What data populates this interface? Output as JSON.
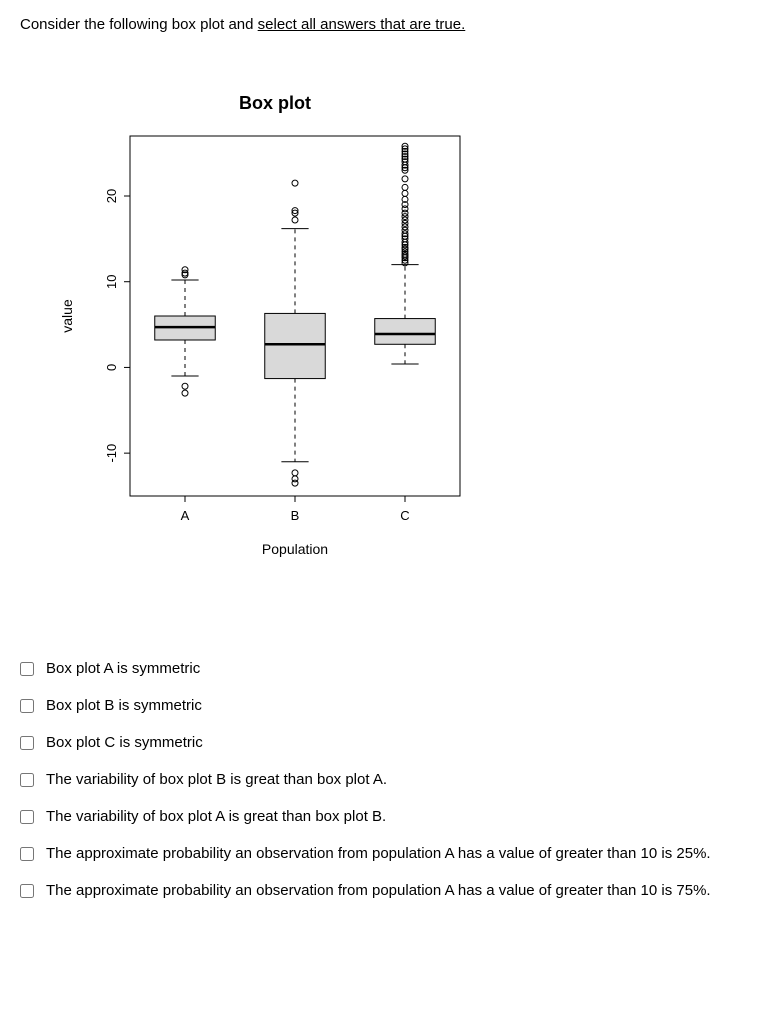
{
  "question": {
    "prefix": "Consider the following box plot and ",
    "underlined": "select all answers that are true."
  },
  "chart": {
    "type": "boxplot",
    "title": "Box plot",
    "ylabel": "value",
    "xlabel": "Population",
    "ylim": [
      -15,
      27
    ],
    "yticks": [
      -10,
      0,
      10,
      20
    ],
    "ytick_labels": [
      "-10",
      "0",
      "10",
      "20"
    ],
    "categories": [
      "A",
      "B",
      "C"
    ],
    "background_color": "#ffffff",
    "border_color": "#000000",
    "box_fill": "#d9d9d9",
    "box_stroke": "#000000",
    "median_stroke": "#000000",
    "whisker_stroke": "#000000",
    "outlier_stroke": "#000000",
    "title_fontsize": 18,
    "label_fontsize": 14,
    "tick_fontsize": 13,
    "boxes": [
      {
        "name": "A",
        "q1": 3.2,
        "median": 4.7,
        "q3": 6.0,
        "whisker_low": -1.0,
        "whisker_high": 10.2,
        "outliers_low": [
          -3.0,
          -2.2
        ],
        "outliers_high": [
          10.8,
          11.0,
          11.4
        ]
      },
      {
        "name": "B",
        "q1": -1.3,
        "median": 2.7,
        "q3": 6.3,
        "whisker_low": -11.0,
        "whisker_high": 16.2,
        "outliers_low": [
          -13.5,
          -13.0,
          -12.3
        ],
        "outliers_high": [
          17.2,
          18.0,
          18.3,
          21.5
        ]
      },
      {
        "name": "C",
        "q1": 2.7,
        "median": 3.9,
        "q3": 5.7,
        "whisker_low": 0.4,
        "whisker_high": 12.0,
        "outliers_low": [],
        "outliers_high": [
          12.2,
          12.5,
          12.8,
          13.0,
          13.2,
          13.5,
          13.8,
          14.0,
          14.3,
          14.6,
          15.0,
          15.3,
          15.6,
          16.0,
          16.4,
          16.8,
          17.2,
          17.6,
          18.0,
          18.5,
          19.0,
          19.6,
          20.3,
          21.0,
          22.0,
          23.0,
          23.3,
          23.6,
          24.0,
          24.3,
          24.6,
          24.9,
          25.2,
          25.5,
          25.8
        ]
      }
    ]
  },
  "answers": [
    "Box plot A is symmetric",
    "Box plot B is symmetric",
    "Box plot C is symmetric",
    "The variability of box plot B is great than box plot A.",
    "The variability of box plot A is great than box plot B.",
    "The approximate probability an observation from population A has a value of greater than 10 is 25%.",
    "The approximate probability an observation from population A has a value of greater than 10 is 75%."
  ]
}
